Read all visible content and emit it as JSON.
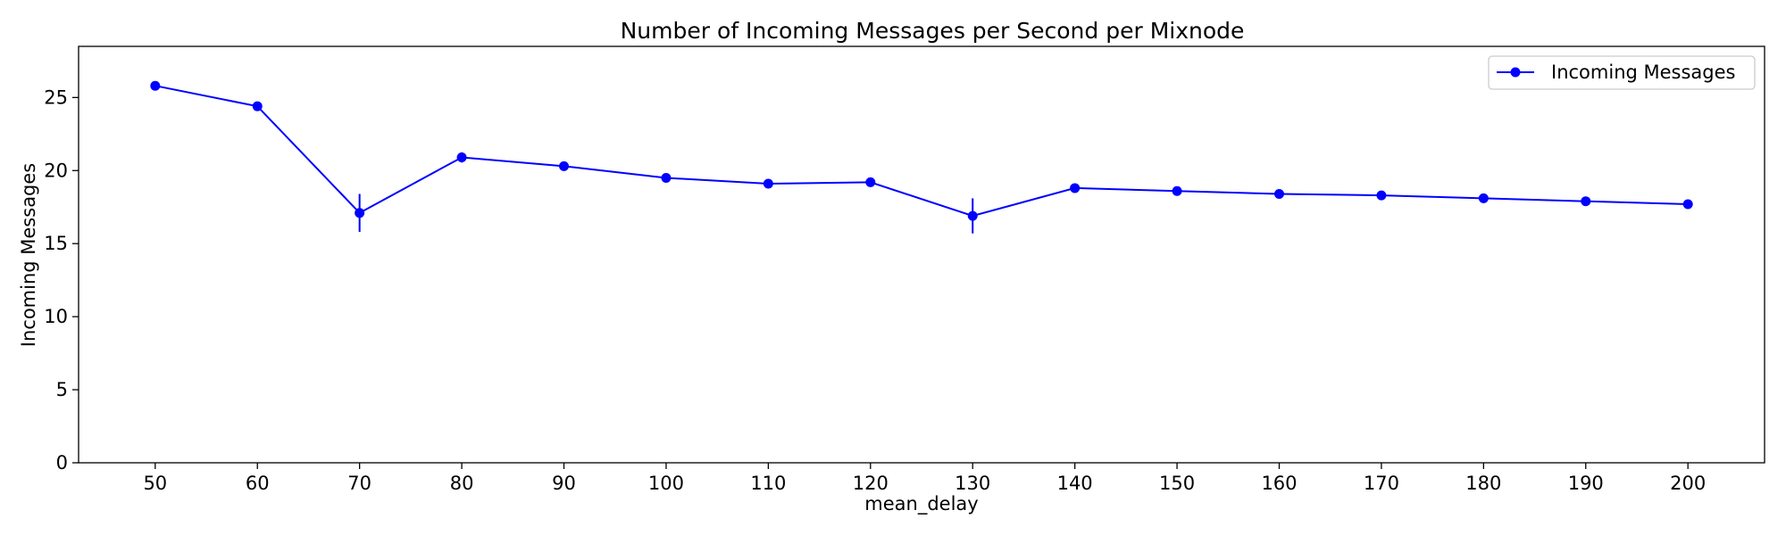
{
  "chart_data": {
    "type": "line",
    "title": "Number of Incoming Messages per Second per Mixnode",
    "xlabel": "mean_delay",
    "ylabel": "Incoming Messages",
    "xlim": [
      42.5,
      207.5
    ],
    "ylim": [
      0,
      28.5
    ],
    "xticks": [
      "50",
      "60",
      "70",
      "80",
      "90",
      "100",
      "110",
      "120",
      "130",
      "140",
      "150",
      "160",
      "170",
      "180",
      "190",
      "200"
    ],
    "yticks": [
      "0",
      "5",
      "10",
      "15",
      "20",
      "25"
    ],
    "grid": false,
    "legend_position": "top-right",
    "series": [
      {
        "name": "Incoming Messages",
        "color": "#0000ff",
        "marker": "circle",
        "x": [
          50,
          60,
          70,
          80,
          90,
          100,
          110,
          120,
          130,
          140,
          150,
          160,
          170,
          180,
          190,
          200
        ],
        "y": [
          25.8,
          24.4,
          17.1,
          20.9,
          20.3,
          19.5,
          19.1,
          19.2,
          16.9,
          18.8,
          18.6,
          18.4,
          18.3,
          18.1,
          17.9,
          17.7
        ],
        "yerr": [
          0.15,
          0.15,
          1.3,
          0.35,
          0.15,
          0.15,
          0.15,
          0.15,
          1.2,
          0.15,
          0.15,
          0.15,
          0.15,
          0.15,
          0.15,
          0.15
        ]
      }
    ]
  }
}
